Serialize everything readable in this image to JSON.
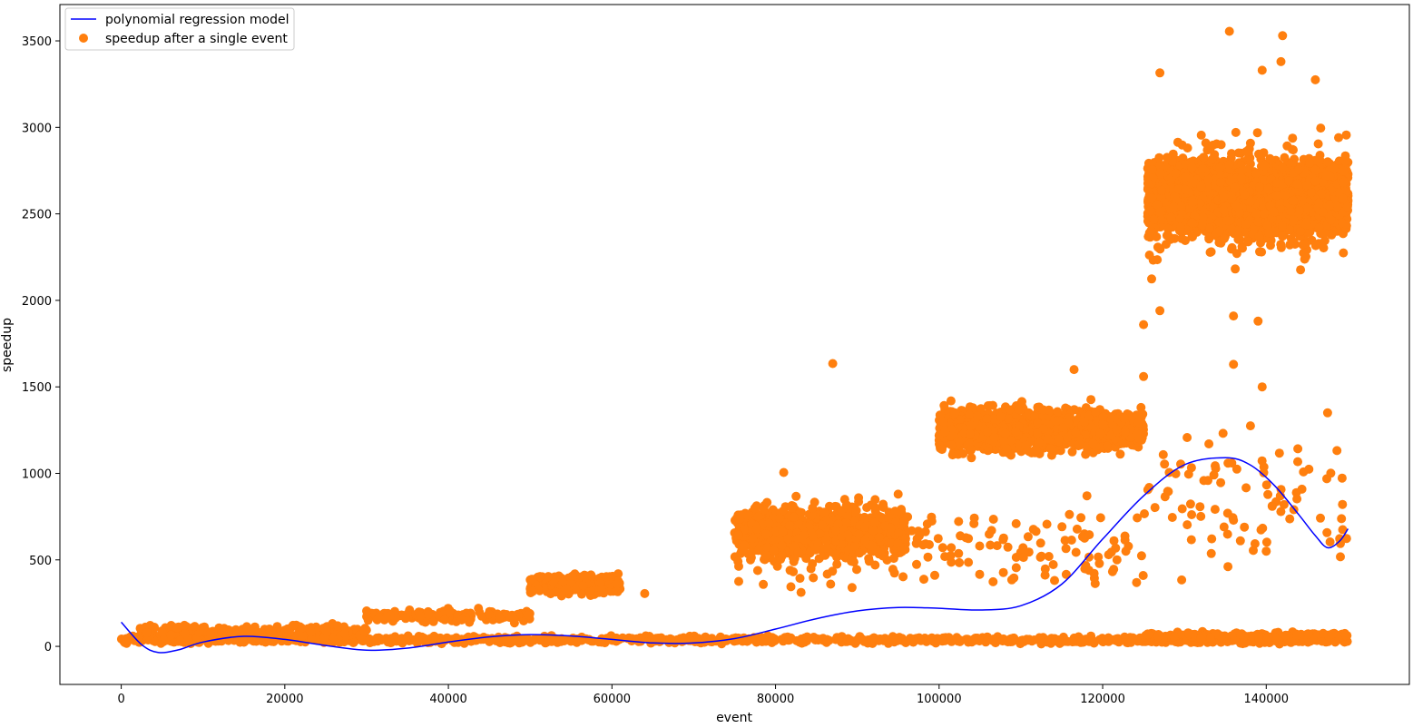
{
  "chart_data": {
    "type": "scatter",
    "title": "",
    "xlabel": "event",
    "ylabel": "speedup",
    "xlim": [
      -7500,
      157500
    ],
    "ylim": [
      -220,
      3710
    ],
    "xticks": [
      0,
      20000,
      40000,
      60000,
      80000,
      100000,
      120000,
      140000
    ],
    "yticks": [
      0,
      500,
      1000,
      1500,
      2000,
      2500,
      3000,
      3500
    ],
    "xtick_labels": [
      "0",
      "20000",
      "40000",
      "60000",
      "80000",
      "100000",
      "120000",
      "140000"
    ],
    "ytick_labels": [
      "0",
      "500",
      "1000",
      "1500",
      "2000",
      "2500",
      "3000",
      "3500"
    ],
    "grid": false,
    "legend_position": "top-left",
    "legend": [
      "polynomial regression model",
      "speedup after a single event"
    ],
    "colors": {
      "line": "#0000ff",
      "points": "#ff7f0e"
    },
    "series": [
      {
        "name": "polynomial regression model",
        "kind": "line",
        "x": [
          0,
          2500,
          4500,
          7000,
          10000,
          15000,
          20000,
          25000,
          30000,
          35000,
          40000,
          45000,
          50000,
          55000,
          60000,
          65000,
          70000,
          75000,
          80000,
          85000,
          90000,
          95000,
          100000,
          105000,
          110000,
          115000,
          120000,
          125000,
          130000,
          135000,
          138000,
          141000,
          144000,
          146000,
          147500,
          149000,
          150000
        ],
        "y": [
          140,
          10,
          -35,
          -20,
          25,
          58,
          40,
          5,
          -22,
          -10,
          25,
          55,
          68,
          60,
          40,
          20,
          20,
          45,
          100,
          160,
          205,
          225,
          220,
          210,
          235,
          360,
          620,
          870,
          1050,
          1090,
          1050,
          930,
          760,
          640,
          570,
          610,
          680
        ]
      },
      {
        "name": "speedup after a single event",
        "kind": "scatter",
        "clusters": [
          {
            "x_range": [
              0,
              150000
            ],
            "y_range": [
              5,
              70
            ],
            "count": 1100
          },
          {
            "x_range": [
              125000,
              150000
            ],
            "y_range": [
              30,
              90
            ],
            "count": 250
          },
          {
            "x_range": [
              2000,
              30000
            ],
            "y_range": [
              20,
              150
            ],
            "count": 220
          },
          {
            "x_range": [
              30000,
              50000
            ],
            "y_range": [
              120,
              230
            ],
            "count": 140
          },
          {
            "x_range": [
              50000,
              61000
            ],
            "y_range": [
              270,
              450
            ],
            "count": 350
          },
          {
            "x_range": [
              75000,
              96000
            ],
            "y_range": [
              420,
              900
            ],
            "count": 900
          },
          {
            "x_range": [
              100000,
              125000
            ],
            "y_range": [
              1050,
              1450
            ],
            "count": 1500
          },
          {
            "x_range": [
              125500,
              150000
            ],
            "y_range": [
              2280,
              2920
            ],
            "count": 3200
          },
          {
            "x_range": [
              125500,
              150000
            ],
            "y_range": [
              2000,
              3150
            ],
            "count": 450
          },
          {
            "x_range": [
              75000,
              125000
            ],
            "y_range": [
              180,
              950
            ],
            "count": 180
          },
          {
            "x_range": [
              125000,
              150000
            ],
            "y_range": [
              250,
              1450
            ],
            "count": 90
          }
        ],
        "outliers": [
          {
            "x": 87000,
            "y": 1635
          },
          {
            "x": 135500,
            "y": 3555
          },
          {
            "x": 142000,
            "y": 3530
          },
          {
            "x": 127000,
            "y": 3315
          },
          {
            "x": 139500,
            "y": 3330
          },
          {
            "x": 141800,
            "y": 3380
          },
          {
            "x": 146000,
            "y": 3275
          },
          {
            "x": 136000,
            "y": 1630
          },
          {
            "x": 139500,
            "y": 1500
          },
          {
            "x": 136000,
            "y": 1910
          },
          {
            "x": 139000,
            "y": 1880
          },
          {
            "x": 147500,
            "y": 1350
          },
          {
            "x": 125000,
            "y": 1860
          },
          {
            "x": 127000,
            "y": 1940
          },
          {
            "x": 125000,
            "y": 1560
          },
          {
            "x": 116500,
            "y": 1600
          },
          {
            "x": 30000,
            "y": 205
          },
          {
            "x": 64000,
            "y": 305
          },
          {
            "x": 81000,
            "y": 1005
          },
          {
            "x": 95000,
            "y": 880
          }
        ]
      }
    ]
  }
}
